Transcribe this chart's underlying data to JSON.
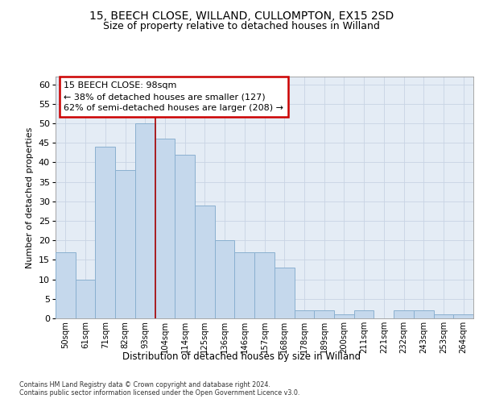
{
  "title_line1": "15, BEECH CLOSE, WILLAND, CULLOMPTON, EX15 2SD",
  "title_line2": "Size of property relative to detached houses in Willand",
  "xlabel": "Distribution of detached houses by size in Willand",
  "ylabel": "Number of detached properties",
  "categories": [
    "50sqm",
    "61sqm",
    "71sqm",
    "82sqm",
    "93sqm",
    "104sqm",
    "114sqm",
    "125sqm",
    "136sqm",
    "146sqm",
    "157sqm",
    "168sqm",
    "178sqm",
    "189sqm",
    "200sqm",
    "211sqm",
    "221sqm",
    "232sqm",
    "243sqm",
    "253sqm",
    "264sqm"
  ],
  "values": [
    17,
    10,
    44,
    38,
    50,
    46,
    42,
    29,
    20,
    17,
    17,
    13,
    2,
    2,
    1,
    2,
    0,
    2,
    2,
    1,
    1
  ],
  "bar_color": "#c5d8ec",
  "bar_edge_color": "#8ab0d0",
  "vline_color": "#aa0000",
  "vline_bin_index": 4,
  "annotation_text": "15 BEECH CLOSE: 98sqm\n← 38% of detached houses are smaller (127)\n62% of semi-detached houses are larger (208) →",
  "annotation_box_facecolor": "#ffffff",
  "annotation_box_edgecolor": "#cc0000",
  "ylim": [
    0,
    62
  ],
  "yticks": [
    0,
    5,
    10,
    15,
    20,
    25,
    30,
    35,
    40,
    45,
    50,
    55,
    60
  ],
  "grid_color": "#c8d4e4",
  "bg_color": "#e4ecf5",
  "footer1": "Contains HM Land Registry data © Crown copyright and database right 2024.",
  "footer2": "Contains public sector information licensed under the Open Government Licence v3.0."
}
